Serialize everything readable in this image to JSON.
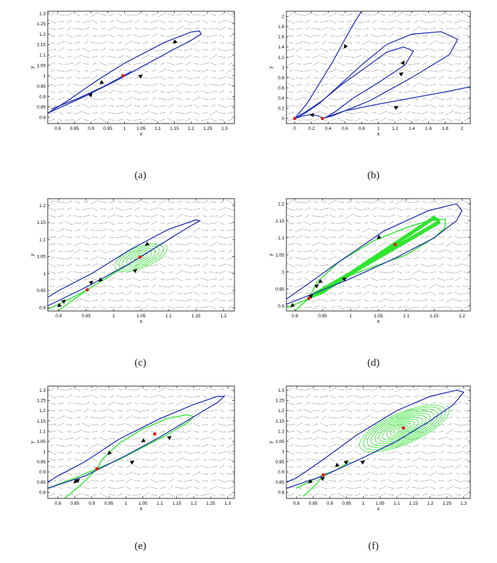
{
  "colors": {
    "orbit": "#1f2fb4",
    "manifold": "#2ee62e",
    "equilibrium": "#e0201b",
    "field": "#8a8a8a",
    "axis": "#000000",
    "background": "#ffffff"
  },
  "chart_data": [
    {
      "type": "phase-portrait",
      "caption": "(a)",
      "xlabel": "x",
      "ylabel": "y",
      "xlim": [
        0.77,
        1.33
      ],
      "ylim": [
        0.77,
        1.31
      ],
      "xticks": [
        "0.8",
        "0.85",
        "0.9",
        "0.95",
        "1",
        "1.05",
        "1.1",
        "1.15",
        "1.2",
        "1.25",
        "1.3"
      ],
      "yticks": [
        "0.8",
        "0.85",
        "0.9",
        "0.95",
        "1",
        "1.05",
        "1.1",
        "1.15",
        "1.2",
        "1.25",
        "1.3"
      ],
      "equilibria": [
        [
          0.995,
          1.0
        ]
      ],
      "orbits": [
        [
          [
            0.77,
            0.82
          ],
          [
            0.88,
            0.9
          ],
          [
            0.98,
            0.98
          ],
          [
            1.06,
            1.05
          ],
          [
            1.14,
            1.12
          ],
          [
            1.2,
            1.17
          ],
          [
            1.23,
            1.2
          ],
          [
            1.225,
            1.215
          ],
          [
            1.2,
            1.21
          ],
          [
            1.12,
            1.16
          ],
          [
            1.0,
            1.06
          ],
          [
            0.92,
            0.98
          ],
          [
            0.83,
            0.88
          ],
          [
            0.77,
            0.82
          ]
        ],
        [
          [
            0.78,
            0.84
          ],
          [
            0.86,
            0.89
          ],
          [
            0.94,
            0.95
          ],
          [
            1.02,
            1.02
          ]
        ]
      ],
      "arrows": [
        [
          0.93,
          0.965,
          -1,
          -0.85
        ],
        [
          0.9,
          0.91,
          1,
          1.05
        ],
        [
          1.05,
          1.0,
          1,
          0.9
        ],
        [
          1.15,
          1.16,
          -1,
          -0.85
        ]
      ]
    },
    {
      "type": "phase-portrait",
      "caption": "(b)",
      "xlabel": "x",
      "ylabel": "y",
      "xlim": [
        -0.1,
        2.1
      ],
      "ylim": [
        -0.1,
        2.1
      ],
      "xticks": [
        "0",
        "0.2",
        "0.4",
        "0.6",
        "0.8",
        "1",
        "1.2",
        "1.4",
        "1.6",
        "1.8",
        "2"
      ],
      "yticks": [
        "0",
        "0.2",
        "0.4",
        "0.6",
        "0.8",
        "1",
        "1.2",
        "1.4",
        "1.6",
        "1.8",
        "2"
      ],
      "equilibria": [
        [
          0.0,
          0.0
        ],
        [
          0.33,
          0.0
        ]
      ],
      "orbits": [
        [
          [
            0.0,
            0.0
          ],
          [
            0.15,
            0.3
          ],
          [
            0.3,
            0.7
          ],
          [
            0.45,
            1.1
          ],
          [
            0.6,
            1.55
          ],
          [
            0.72,
            1.9
          ],
          [
            0.8,
            2.1
          ]
        ],
        [
          [
            0.0,
            0.0
          ],
          [
            0.12,
            0.1
          ],
          [
            0.3,
            0.3
          ],
          [
            0.5,
            0.6
          ],
          [
            0.8,
            1.05
          ],
          [
            1.1,
            1.45
          ],
          [
            1.4,
            1.65
          ],
          [
            1.75,
            1.7
          ],
          [
            1.95,
            1.55
          ],
          [
            1.85,
            1.25
          ],
          [
            1.4,
            0.8
          ],
          [
            0.9,
            0.35
          ],
          [
            0.6,
            0.15
          ],
          [
            0.45,
            0.05
          ],
          [
            0.33,
            0.0
          ]
        ],
        [
          [
            0.0,
            0.0
          ],
          [
            0.15,
            0.15
          ],
          [
            0.33,
            0.35
          ],
          [
            0.55,
            0.65
          ],
          [
            0.85,
            1.0
          ],
          [
            1.1,
            1.3
          ],
          [
            1.3,
            1.4
          ],
          [
            1.42,
            1.32
          ],
          [
            1.32,
            1.05
          ],
          [
            1.0,
            0.7
          ],
          [
            0.7,
            0.4
          ],
          [
            0.5,
            0.15
          ],
          [
            0.38,
            0.03
          ]
        ],
        [
          [
            0.33,
            0.0
          ],
          [
            0.6,
            0.15
          ],
          [
            1.0,
            0.28
          ],
          [
            1.4,
            0.4
          ],
          [
            1.8,
            0.52
          ],
          [
            2.1,
            0.62
          ]
        ],
        [
          [
            0.0,
            0.0
          ],
          [
            0.1,
            0.05
          ],
          [
            0.2,
            0.08
          ],
          [
            0.3,
            0.04
          ],
          [
            0.33,
            0.0
          ]
        ]
      ],
      "arrows": [
        [
          0.6,
          1.4,
          -1,
          -1.5
        ],
        [
          1.28,
          0.88,
          1,
          0.6
        ],
        [
          1.22,
          0.22,
          1,
          0.3
        ],
        [
          1.3,
          1.1,
          0.6,
          1
        ],
        [
          0.2,
          0.07,
          -1,
          0
        ]
      ]
    },
    {
      "type": "phase-portrait",
      "caption": "(c)",
      "xlabel": "x",
      "ylabel": "y",
      "xlim": [
        0.88,
        1.22
      ],
      "ylim": [
        0.89,
        1.22
      ],
      "xticks": [
        "0.9",
        "0.95",
        "1",
        "1.05",
        "1.1",
        "1.15",
        "1.2"
      ],
      "yticks": [
        "0.9",
        "0.95",
        "1",
        "1.05",
        "1.1",
        "1.15",
        "1.2"
      ],
      "equilibria": [
        [
          0.952,
          0.952
        ],
        [
          1.048,
          1.048
        ]
      ],
      "orbits": [
        [
          [
            0.88,
            0.905
          ],
          [
            0.95,
            0.96
          ],
          [
            1.03,
            1.03
          ],
          [
            1.1,
            1.1
          ],
          [
            1.14,
            1.14
          ],
          [
            1.157,
            1.155
          ],
          [
            1.15,
            1.158
          ],
          [
            1.1,
            1.13
          ],
          [
            1.03,
            1.07
          ],
          [
            0.96,
            1.0
          ],
          [
            0.9,
            0.95
          ],
          [
            0.88,
            0.93
          ]
        ]
      ],
      "green_orbits": [
        [
          [
            0.88,
            0.895
          ],
          [
            0.92,
            0.925
          ],
          [
            0.952,
            0.952
          ],
          [
            0.99,
            0.99
          ],
          [
            1.03,
            1.03
          ],
          [
            1.07,
            1.07
          ],
          [
            1.09,
            1.09
          ]
        ],
        [
          [
            0.89,
            0.88
          ],
          [
            0.92,
            0.915
          ],
          [
            0.952,
            0.952
          ]
        ]
      ],
      "spiral": {
        "center": [
          1.048,
          1.048
        ],
        "rx": 0.06,
        "ry": 0.03,
        "rotation": 40,
        "loops": 7
      },
      "arrows": [
        [
          0.9,
          0.905,
          -1,
          -0.8
        ],
        [
          0.91,
          0.92,
          1,
          0.9
        ],
        [
          0.96,
          0.975,
          1,
          0.8
        ],
        [
          0.975,
          0.98,
          -1,
          -0.8
        ],
        [
          1.04,
          1.01,
          1,
          0.9
        ],
        [
          1.06,
          1.085,
          -1,
          -0.8
        ]
      ]
    },
    {
      "type": "phase-portrait",
      "caption": "(d)",
      "xlabel": "x",
      "ylabel": "y",
      "xlim": [
        0.885,
        1.215
      ],
      "ylim": [
        0.885,
        1.215
      ],
      "xticks": [
        "0.9",
        "0.95",
        "1",
        "1.05",
        "1.1",
        "1.15",
        "1.2"
      ],
      "yticks": [
        "0.9",
        "0.95",
        "1",
        "1.05",
        "1.1",
        "1.15",
        "1.2"
      ],
      "equilibria": [
        [
          0.925,
          0.922
        ],
        [
          1.08,
          1.08
        ]
      ],
      "orbits": [
        [
          [
            0.885,
            0.905
          ],
          [
            0.94,
            0.94
          ],
          [
            1.0,
            0.98
          ],
          [
            1.08,
            1.04
          ],
          [
            1.15,
            1.1
          ],
          [
            1.19,
            1.15
          ],
          [
            1.2,
            1.18
          ],
          [
            1.19,
            1.2
          ],
          [
            1.14,
            1.18
          ],
          [
            1.06,
            1.12
          ],
          [
            0.98,
            1.03
          ],
          [
            0.92,
            0.96
          ],
          [
            0.885,
            0.92
          ]
        ]
      ],
      "green_orbits": [
        [
          [
            0.885,
            0.895
          ],
          [
            0.91,
            0.91
          ],
          [
            0.925,
            0.922
          ],
          [
            0.95,
            0.945
          ],
          [
            1.0,
            0.99
          ],
          [
            1.05,
            1.02
          ],
          [
            1.1,
            1.05
          ],
          [
            1.15,
            1.1
          ],
          [
            1.17,
            1.13
          ],
          [
            1.17,
            1.155
          ],
          [
            1.14,
            1.15
          ],
          [
            1.1,
            1.13
          ],
          [
            1.04,
            1.09
          ],
          [
            0.98,
            1.03
          ],
          [
            0.94,
            0.97
          ],
          [
            0.925,
            0.922
          ]
        ],
        [
          [
            0.9,
            0.885
          ],
          [
            0.91,
            0.9
          ],
          [
            0.925,
            0.922
          ]
        ]
      ],
      "band": {
        "from": [
          0.93,
          0.93
        ],
        "to": [
          1.16,
          1.13
        ],
        "width": 0.012,
        "loops": 6
      },
      "arrows": [
        [
          0.895,
          0.9,
          -1,
          -0.9
        ],
        [
          0.93,
          0.93,
          1,
          0.9
        ],
        [
          0.94,
          0.96,
          1,
          0.9
        ],
        [
          0.945,
          0.97,
          -1,
          -0.8
        ],
        [
          0.99,
          0.98,
          1,
          0.6
        ],
        [
          1.05,
          1.1,
          -1,
          -0.8
        ]
      ]
    },
    {
      "type": "phase-portrait",
      "caption": "(e)",
      "xlabel": "x",
      "ylabel": "y",
      "xlim": [
        0.77,
        1.32
      ],
      "ylim": [
        0.77,
        1.32
      ],
      "xticks": [
        "0.8",
        "0.85",
        "0.9",
        "0.95",
        "1",
        "1.05",
        "1.1",
        "1.15",
        "1.2",
        "1.25",
        "1.3"
      ],
      "yticks": [
        "0.8",
        "0.85",
        "0.9",
        "0.95",
        "1",
        "1.05",
        "1.1",
        "1.15",
        "1.2",
        "1.25",
        "1.3"
      ],
      "equilibria": [
        [
          0.915,
          0.915
        ],
        [
          1.085,
          1.085
        ]
      ],
      "orbits": [
        [
          [
            0.77,
            0.82
          ],
          [
            0.88,
            0.88
          ],
          [
            1.0,
            0.98
          ],
          [
            1.1,
            1.07
          ],
          [
            1.2,
            1.17
          ],
          [
            1.27,
            1.24
          ],
          [
            1.29,
            1.27
          ],
          [
            1.27,
            1.27
          ],
          [
            1.2,
            1.23
          ],
          [
            1.1,
            1.16
          ],
          [
            0.98,
            1.06
          ],
          [
            0.88,
            0.95
          ],
          [
            0.8,
            0.88
          ],
          [
            0.77,
            0.85
          ]
        ]
      ],
      "green_orbits": [
        [
          [
            0.77,
            0.82
          ],
          [
            0.85,
            0.87
          ],
          [
            0.915,
            0.915
          ],
          [
            0.98,
            0.96
          ],
          [
            1.05,
            1.02
          ],
          [
            1.12,
            1.08
          ],
          [
            1.18,
            1.14
          ],
          [
            1.2,
            1.17
          ],
          [
            1.18,
            1.18
          ],
          [
            1.12,
            1.16
          ],
          [
            1.05,
            1.11
          ],
          [
            0.98,
            1.04
          ],
          [
            0.93,
            0.96
          ],
          [
            0.915,
            0.915
          ]
        ],
        [
          [
            0.82,
            0.77
          ],
          [
            0.87,
            0.84
          ],
          [
            0.915,
            0.915
          ]
        ]
      ],
      "arrows": [
        [
          0.85,
          0.85,
          -1,
          -0.9
        ],
        [
          0.86,
          0.86,
          1,
          0.9
        ],
        [
          0.95,
          0.99,
          -1,
          -0.9
        ],
        [
          1.02,
          0.95,
          1,
          0.8
        ],
        [
          1.05,
          1.05,
          -1,
          -0.7
        ],
        [
          1.13,
          1.07,
          1,
          0.8
        ]
      ]
    },
    {
      "type": "phase-portrait",
      "caption": "(f)",
      "xlabel": "x",
      "ylabel": "y",
      "xlim": [
        0.77,
        1.32
      ],
      "ylim": [
        0.77,
        1.32
      ],
      "xticks": [
        "0.8",
        "0.85",
        "0.9",
        "0.95",
        "1",
        "1.05",
        "1.1",
        "1.15",
        "1.2",
        "1.25",
        "1.3"
      ],
      "yticks": [
        "0.8",
        "0.85",
        "0.9",
        "0.95",
        "1",
        "1.05",
        "1.1",
        "1.15",
        "1.2",
        "1.25",
        "1.3"
      ],
      "equilibria": [
        [
          0.88,
          0.885
        ],
        [
          1.12,
          1.115
        ]
      ],
      "orbits": [
        [
          [
            0.77,
            0.82
          ],
          [
            0.88,
            0.88
          ],
          [
            1.0,
            0.97
          ],
          [
            1.1,
            1.05
          ],
          [
            1.2,
            1.15
          ],
          [
            1.27,
            1.23
          ],
          [
            1.3,
            1.29
          ],
          [
            1.28,
            1.3
          ],
          [
            1.2,
            1.27
          ],
          [
            1.1,
            1.2
          ],
          [
            0.98,
            1.08
          ],
          [
            0.88,
            0.96
          ],
          [
            0.8,
            0.87
          ],
          [
            0.77,
            0.85
          ]
        ]
      ],
      "green_orbits": [
        [
          [
            0.8,
            0.82
          ],
          [
            0.85,
            0.86
          ],
          [
            0.88,
            0.885
          ],
          [
            0.92,
            0.91
          ],
          [
            0.96,
            0.95
          ]
        ],
        [
          [
            0.82,
            0.78
          ],
          [
            0.86,
            0.84
          ],
          [
            0.88,
            0.885
          ]
        ]
      ],
      "spiral": {
        "center": [
          1.12,
          1.115
        ],
        "rx": 0.17,
        "ry": 0.07,
        "rotation": 40,
        "loops": 12
      },
      "arrows": [
        [
          0.84,
          0.85,
          -1,
          -0.9
        ],
        [
          0.88,
          0.87,
          1,
          0.8
        ],
        [
          0.92,
          0.93,
          -1,
          -0.9
        ],
        [
          0.95,
          0.95,
          1,
          0.8
        ],
        [
          1.0,
          0.95,
          1,
          0.7
        ]
      ]
    }
  ]
}
